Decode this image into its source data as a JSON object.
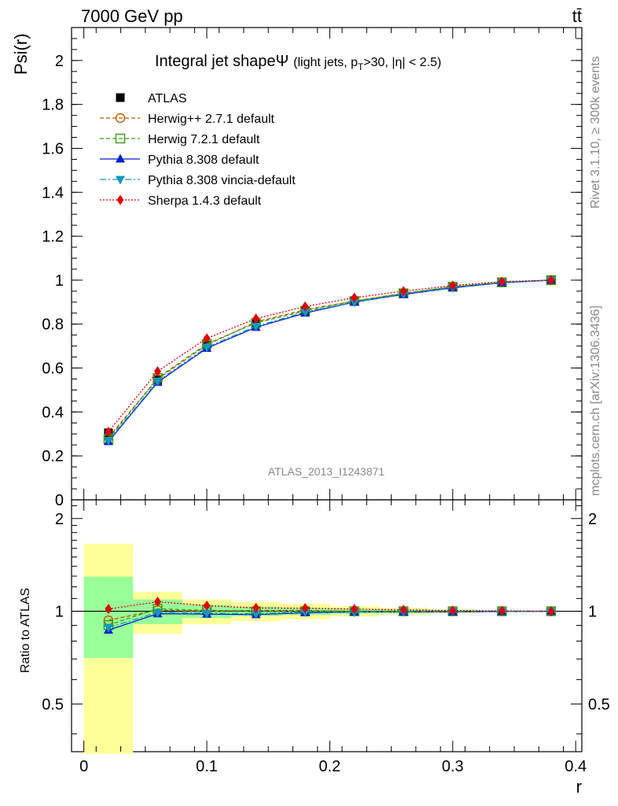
{
  "header": {
    "energy_label": "7000 GeV pp",
    "process_label": "tt̄"
  },
  "side_labels": {
    "rivet": "Rivet 3.1.10, ≥ 300k events",
    "mcplots": "mcplots.cern.ch [arXiv:1306.3436]"
  },
  "chart_data": {
    "type": "line",
    "title_main": "Integral jet shape",
    "title_psi": "Ψ",
    "title_cut_pre": "(light jets, p",
    "title_cut_sub": "T",
    "title_cut_post": ">30, |η| < 2.5)",
    "analysis_label": "ATLAS_2013_I1243871",
    "xlabel": "r",
    "ylabel": "Psi(r)",
    "ratio_ylabel": "Ratio to ATLAS",
    "xlim": [
      -0.01,
      0.405
    ],
    "ylim": [
      0,
      2.15
    ],
    "ratio_ylim": [
      0.35,
      2.3
    ],
    "x_ticks": [
      0,
      0.1,
      0.2,
      0.3,
      0.4
    ],
    "x_tick_labels": [
      "0",
      "0.1",
      "0.2",
      "0.3",
      "0.4"
    ],
    "y_ticks": [
      0.2,
      0.4,
      0.6,
      0.8,
      1,
      1.2,
      1.4,
      1.6,
      1.8,
      2
    ],
    "y_tick_labels": [
      "0.2",
      "0.4",
      "0.6",
      "0.8",
      "1",
      "1.2",
      "1.4",
      "1.6",
      "1.8",
      "2"
    ],
    "y_zero_label": "0",
    "ratio_ticks": [
      0.5,
      1,
      2
    ],
    "ratio_tick_labels": [
      "0.5",
      "1",
      "2"
    ],
    "x": [
      0.02,
      0.06,
      0.1,
      0.14,
      0.18,
      0.22,
      0.26,
      0.3,
      0.34,
      0.38
    ],
    "data": {
      "name": "ATLAS",
      "values": [
        0.305,
        0.545,
        0.705,
        0.805,
        0.86,
        0.905,
        0.94,
        0.97,
        0.99,
        1.0
      ],
      "band_inner": [
        0.09,
        0.05,
        0.035,
        0.028,
        0.022,
        0.016,
        0.012,
        0.008,
        0.004,
        0.001
      ],
      "band_outer": [
        0.2,
        0.085,
        0.065,
        0.058,
        0.05,
        0.035,
        0.025,
        0.015,
        0.006,
        0.002
      ]
    },
    "series": [
      {
        "name": "Herwig++ 2.7.1 default",
        "color": "#b35c00",
        "dash": "5,3",
        "marker": "circle-open",
        "values": [
          0.285,
          0.55,
          0.705,
          0.81,
          0.865,
          0.905,
          0.94,
          0.97,
          0.99,
          1.0
        ]
      },
      {
        "name": "Herwig 7.2.1 default",
        "color": "#3c9b10",
        "dash": "5,3",
        "marker": "square-open",
        "values": [
          0.275,
          0.555,
          0.71,
          0.805,
          0.86,
          0.905,
          0.94,
          0.97,
          0.99,
          1.0
        ]
      },
      {
        "name": "Pythia 8.308 default",
        "color": "#0022cc",
        "dash": "",
        "marker": "triangle-up",
        "values": [
          0.265,
          0.535,
          0.69,
          0.785,
          0.85,
          0.9,
          0.935,
          0.965,
          0.988,
          1.0
        ]
      },
      {
        "name": "Pythia 8.308 vincia-default",
        "color": "#1199bb",
        "dash": "8,3,2,3",
        "marker": "triangle-down",
        "values": [
          0.27,
          0.54,
          0.695,
          0.79,
          0.855,
          0.9,
          0.937,
          0.967,
          0.989,
          1.0
        ]
      },
      {
        "name": "Sherpa 1.4.3 default",
        "color": "#dd0000",
        "dash": "2,2",
        "marker": "diamond",
        "values": [
          0.31,
          0.585,
          0.735,
          0.825,
          0.88,
          0.92,
          0.95,
          0.975,
          0.993,
          1.0
        ]
      }
    ]
  }
}
